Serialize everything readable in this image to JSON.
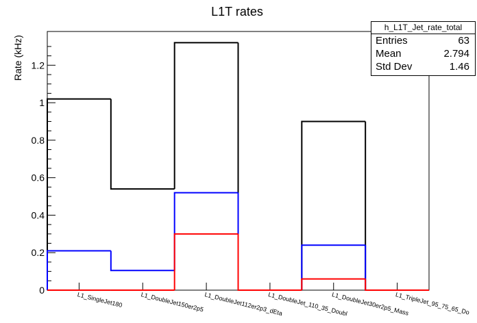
{
  "chart_data": {
    "type": "bar",
    "title": "L1T rates",
    "ylabel": "Rate (kHz)",
    "xlabel": "",
    "ylim": [
      0,
      1.38
    ],
    "yticks": [
      "0",
      "0.2",
      "0.4",
      "0.6",
      "0.8",
      "1",
      "1.2"
    ],
    "categories": [
      "L1_SingleJet180",
      "L1_DoubleJet150er2p5",
      "L1_DoubleJet112er2p3_dEta",
      "L1_DoubleJet_110_35_Doubl",
      "L1_DoubleJet30er2p5_Mass",
      "L1_TripleJet_95_75_65_Do"
    ],
    "series": [
      {
        "color": "#000000",
        "values": [
          1.02,
          0.54,
          1.32,
          0.0,
          0.9,
          0.0
        ]
      },
      {
        "color": "#0000ff",
        "values": [
          0.21,
          0.105,
          0.52,
          0.0,
          0.24,
          0.0
        ]
      },
      {
        "color": "#ff0000",
        "values": [
          0.0,
          0.0,
          0.3,
          0.0,
          0.06,
          0.0
        ]
      }
    ],
    "stats": {
      "name": "h_L1T_Jet_rate_total",
      "entries_label": "Entries",
      "entries": "63",
      "mean_label": "Mean",
      "mean": "2.794",
      "stddev_label": "Std Dev",
      "stddev": "1.46"
    }
  }
}
